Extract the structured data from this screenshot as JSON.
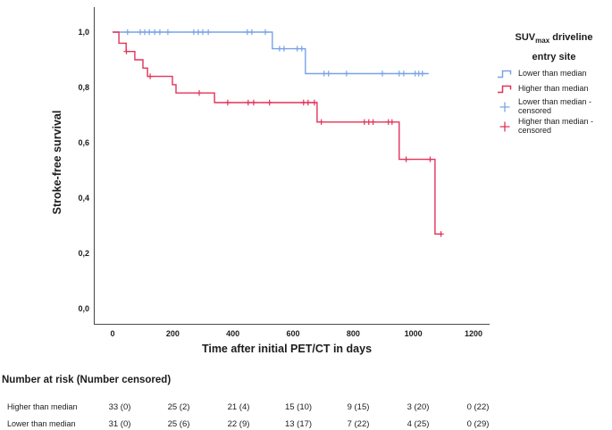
{
  "colors": {
    "lower": "#79a3e6",
    "higher": "#e23359",
    "axis": "#4d4d4d",
    "text": "#1c1c1c"
  },
  "chart_data": {
    "type": "line",
    "subtype": "kaplan_meier_step_survival",
    "title": "",
    "xlabel": "Time after initial PET/CT in days",
    "ylabel": "Stroke-free survival",
    "xlim": [
      0,
      1200
    ],
    "ylim": [
      0.0,
      1.0
    ],
    "grid": false,
    "x_ticks": [
      0,
      200,
      400,
      600,
      800,
      1000,
      1200
    ],
    "x_tick_labels": [
      "0",
      "200",
      "400",
      "600",
      "800",
      "1000",
      "1200"
    ],
    "y_ticks": [
      0.0,
      0.2,
      0.4,
      0.6,
      0.8,
      1.0
    ],
    "y_tick_labels": [
      "0,0",
      "0,2",
      "0,4",
      "0,6",
      "0,8",
      "1,0"
    ],
    "legend_position": "right",
    "series": [
      {
        "key": "lower",
        "name": "Lower than median",
        "steps": [
          [
            0,
            1.0
          ],
          [
            531,
            0.94
          ],
          [
            641,
            0.85
          ]
        ],
        "end_day": 1051,
        "censor_marks": [
          [
            50,
            1.0
          ],
          [
            92,
            1.0
          ],
          [
            107,
            1.0
          ],
          [
            122,
            1.0
          ],
          [
            140,
            1.0
          ],
          [
            157,
            1.0
          ],
          [
            184,
            1.0
          ],
          [
            270,
            1.0
          ],
          [
            285,
            1.0
          ],
          [
            300,
            1.0
          ],
          [
            318,
            1.0
          ],
          [
            448,
            1.0
          ],
          [
            463,
            1.0
          ],
          [
            508,
            1.0
          ],
          [
            555,
            0.94
          ],
          [
            570,
            0.94
          ],
          [
            614,
            0.94
          ],
          [
            629,
            0.94
          ],
          [
            703,
            0.85
          ],
          [
            718,
            0.85
          ],
          [
            778,
            0.85
          ],
          [
            897,
            0.85
          ],
          [
            953,
            0.85
          ],
          [
            968,
            0.85
          ],
          [
            1006,
            0.85
          ],
          [
            1018,
            0.85
          ],
          [
            1030,
            0.85
          ]
        ]
      },
      {
        "key": "higher",
        "name": "Higher than median",
        "steps": [
          [
            0,
            1.0
          ],
          [
            21,
            0.96
          ],
          [
            45,
            0.93
          ],
          [
            74,
            0.9
          ],
          [
            101,
            0.87
          ],
          [
            116,
            0.84
          ],
          [
            199,
            0.81
          ],
          [
            211,
            0.78
          ],
          [
            339,
            0.745
          ],
          [
            680,
            0.675
          ],
          [
            953,
            0.54
          ],
          [
            1072,
            0.27
          ]
        ],
        "end_day": 1096,
        "censor_marks": [
          [
            46,
            0.93
          ],
          [
            125,
            0.84
          ],
          [
            288,
            0.78
          ],
          [
            383,
            0.745
          ],
          [
            451,
            0.745
          ],
          [
            469,
            0.745
          ],
          [
            522,
            0.745
          ],
          [
            635,
            0.745
          ],
          [
            650,
            0.745
          ],
          [
            671,
            0.745
          ],
          [
            694,
            0.675
          ],
          [
            837,
            0.675
          ],
          [
            852,
            0.675
          ],
          [
            866,
            0.675
          ],
          [
            917,
            0.675
          ],
          [
            929,
            0.675
          ],
          [
            976,
            0.54
          ],
          [
            1056,
            0.54
          ],
          [
            1092,
            0.27
          ]
        ]
      }
    ]
  },
  "legend": {
    "title_main": "SUV",
    "title_sub": "max",
    "title_rest": " driveline",
    "title_line2": "entry site",
    "items": [
      {
        "label": "Lower than median",
        "label2": "",
        "symbol": "step-line",
        "color_key": "lower"
      },
      {
        "label": "Higher than median",
        "label2": "",
        "symbol": "step-line",
        "color_key": "higher"
      },
      {
        "label": "Lower than median -",
        "label2": "censored",
        "symbol": "plus",
        "color_key": "lower"
      },
      {
        "label": "Higher than median -",
        "label2": "censored",
        "symbol": "plus",
        "color_key": "higher"
      }
    ]
  },
  "risk_table": {
    "title": "Number at risk (Number censored)",
    "rows": [
      {
        "label": "Higher than median",
        "values": [
          "33 (0)",
          "25 (2)",
          "21 (4)",
          "15 (10)",
          "9 (15)",
          "3 (20)",
          "0 (22)"
        ]
      },
      {
        "label": "Lower than median",
        "values": [
          "31 (0)",
          "25 (6)",
          "22 (9)",
          "13 (17)",
          "7 (22)",
          "4 (25)",
          "0 (29)"
        ]
      }
    ]
  }
}
